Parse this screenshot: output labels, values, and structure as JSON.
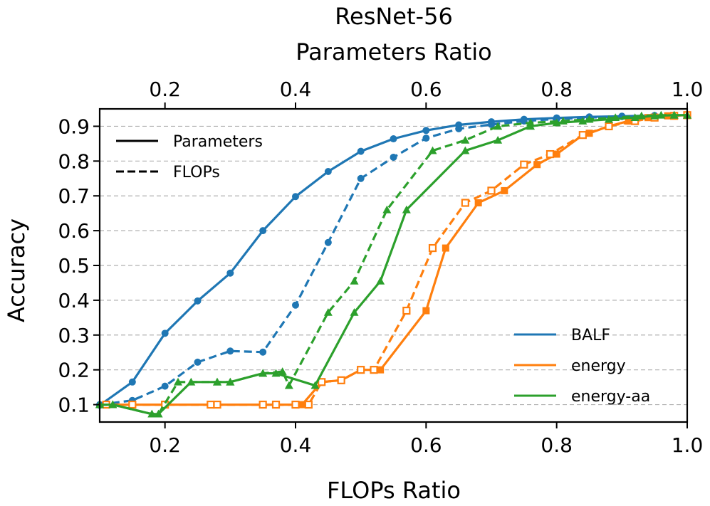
{
  "chart_data": {
    "type": "line",
    "title": "ResNet-56",
    "xlabel": "FLOPs Ratio",
    "xlabel_top": "Parameters Ratio",
    "ylabel": "Accuracy",
    "xlim": [
      0.1,
      1.0
    ],
    "ylim": [
      0.05,
      0.95
    ],
    "x_ticks": [
      "0.2",
      "0.4",
      "0.6",
      "0.8",
      "1.0"
    ],
    "x_ticks_top": [
      "0.2",
      "0.4",
      "0.6",
      "0.8",
      "1.0"
    ],
    "y_ticks": [
      "0.1",
      "0.2",
      "0.3",
      "0.4",
      "0.5",
      "0.6",
      "0.7",
      "0.8",
      "0.9"
    ],
    "grid": "y dashed",
    "style_legend": {
      "placement": "top-left",
      "entries": [
        {
          "label": "Parameters",
          "dash": "solid"
        },
        {
          "label": "FLOPs",
          "dash": "dashed"
        }
      ]
    },
    "method_legend": {
      "placement": "bottom-right",
      "entries": [
        {
          "label": "BALF",
          "color": "#1f77b4"
        },
        {
          "label": "energy",
          "color": "#ff7f0e"
        },
        {
          "label": "energy-aa",
          "color": "#2ca02c"
        }
      ]
    },
    "series": [
      {
        "name": "BALF",
        "metric": "Parameters",
        "color": "#1f77b4",
        "marker": "circle",
        "x": [
          0.1,
          0.15,
          0.2,
          0.25,
          0.3,
          0.35,
          0.4,
          0.45,
          0.5,
          0.55,
          0.6,
          0.65,
          0.7,
          0.75,
          0.8,
          0.85,
          0.9,
          0.95,
          1.0
        ],
        "y": [
          0.098,
          0.165,
          0.305,
          0.398,
          0.478,
          0.6,
          0.698,
          0.77,
          0.828,
          0.864,
          0.888,
          0.904,
          0.913,
          0.92,
          0.924,
          0.927,
          0.929,
          0.931,
          0.932
        ]
      },
      {
        "name": "BALF",
        "metric": "FLOPs",
        "color": "#1f77b4",
        "marker": "circle",
        "x": [
          0.1,
          0.15,
          0.2,
          0.25,
          0.3,
          0.35,
          0.4,
          0.45,
          0.5,
          0.55,
          0.6,
          0.65,
          0.7,
          0.75,
          0.8,
          0.85,
          0.9,
          0.95,
          1.0
        ],
        "y": [
          0.1,
          0.112,
          0.153,
          0.222,
          0.254,
          0.251,
          0.386,
          0.566,
          0.75,
          0.811,
          0.866,
          0.893,
          0.905,
          0.915,
          0.921,
          0.925,
          0.928,
          0.93,
          0.932
        ]
      },
      {
        "name": "energy",
        "metric": "Parameters",
        "color": "#ff7f0e",
        "marker": "square",
        "x": [
          0.11,
          0.15,
          0.2,
          0.27,
          0.28,
          0.35,
          0.37,
          0.4,
          0.41,
          0.44,
          0.47,
          0.5,
          0.53,
          0.6,
          0.63,
          0.68,
          0.72,
          0.77,
          0.8,
          0.84,
          0.85,
          0.88,
          0.91,
          0.94,
          0.97,
          1.0
        ],
        "y": [
          0.1,
          0.1,
          0.1,
          0.1,
          0.1,
          0.1,
          0.1,
          0.1,
          0.1,
          0.165,
          0.17,
          0.2,
          0.2,
          0.37,
          0.55,
          0.68,
          0.715,
          0.79,
          0.82,
          0.875,
          0.88,
          0.9,
          0.915,
          0.925,
          0.93,
          0.932
        ]
      },
      {
        "name": "energy",
        "metric": "FLOPs",
        "color": "#ff7f0e",
        "marker": "square-open",
        "x": [
          0.11,
          0.15,
          0.2,
          0.27,
          0.28,
          0.35,
          0.37,
          0.4,
          0.42,
          0.44,
          0.47,
          0.5,
          0.52,
          0.57,
          0.61,
          0.66,
          0.7,
          0.75,
          0.79,
          0.84,
          0.88,
          0.92,
          0.95,
          0.98,
          1.0
        ],
        "y": [
          0.1,
          0.1,
          0.1,
          0.1,
          0.1,
          0.1,
          0.1,
          0.1,
          0.1,
          0.165,
          0.17,
          0.2,
          0.2,
          0.37,
          0.55,
          0.68,
          0.715,
          0.79,
          0.82,
          0.875,
          0.9,
          0.915,
          0.925,
          0.93,
          0.932
        ]
      },
      {
        "name": "energy-aa",
        "metric": "Parameters",
        "color": "#2ca02c",
        "marker": "triangle",
        "x": [
          0.1,
          0.12,
          0.18,
          0.19,
          0.24,
          0.28,
          0.3,
          0.35,
          0.37,
          0.43,
          0.49,
          0.53,
          0.57,
          0.66,
          0.71,
          0.76,
          0.8,
          0.84,
          0.88,
          0.92,
          0.95,
          0.98,
          1.0
        ],
        "y": [
          0.1,
          0.1,
          0.073,
          0.073,
          0.165,
          0.165,
          0.165,
          0.19,
          0.19,
          0.155,
          0.365,
          0.455,
          0.66,
          0.83,
          0.86,
          0.9,
          0.91,
          0.915,
          0.92,
          0.925,
          0.93,
          0.932,
          0.932
        ]
      },
      {
        "name": "energy-aa",
        "metric": "FLOPs",
        "color": "#2ca02c",
        "marker": "triangle",
        "x": [
          0.1,
          0.12,
          0.18,
          0.19,
          0.22,
          0.28,
          0.3,
          0.35,
          0.38,
          0.39,
          0.45,
          0.49,
          0.54,
          0.61,
          0.66,
          0.71,
          0.76,
          0.81,
          0.85,
          0.89,
          0.93,
          0.96,
          0.98,
          1.0
        ],
        "y": [
          0.1,
          0.1,
          0.073,
          0.073,
          0.165,
          0.165,
          0.165,
          0.19,
          0.195,
          0.155,
          0.365,
          0.455,
          0.66,
          0.83,
          0.86,
          0.9,
          0.91,
          0.915,
          0.92,
          0.925,
          0.93,
          0.932,
          0.932,
          0.932
        ]
      }
    ]
  }
}
